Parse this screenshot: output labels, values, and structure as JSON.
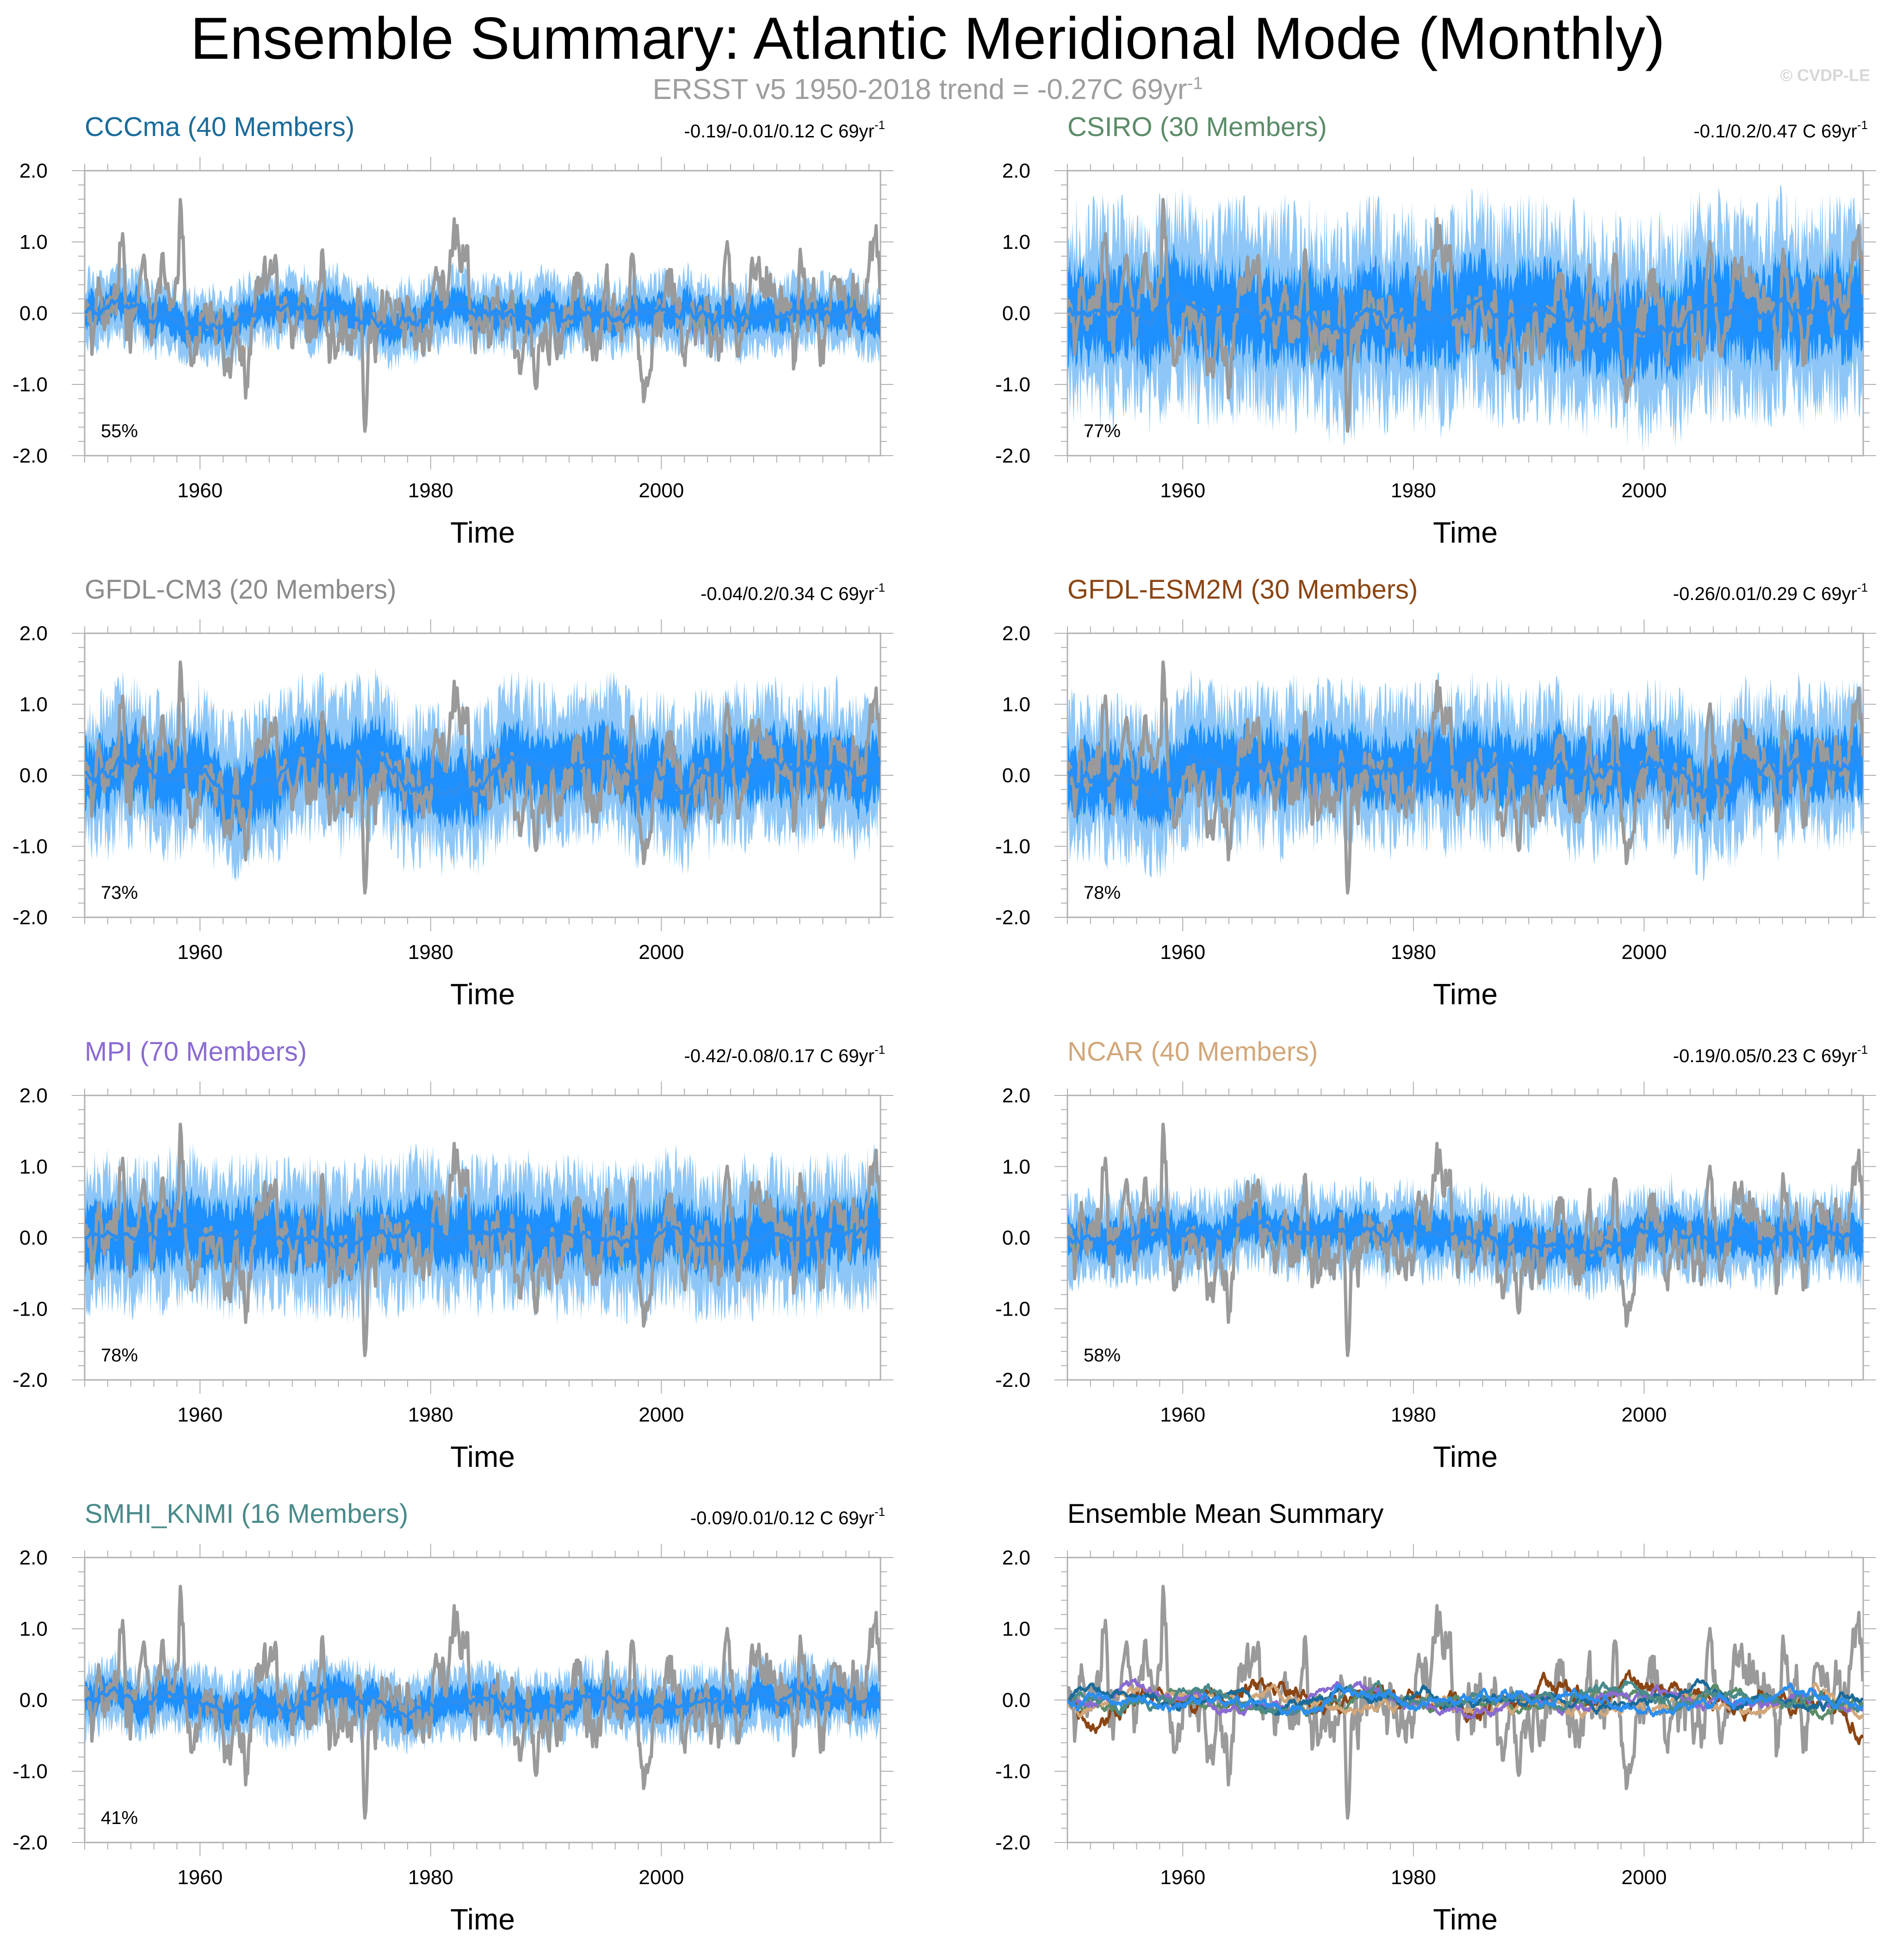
{
  "title": "Ensemble Summary: Atlantic Meridional Mode (Monthly)",
  "subtitle": {
    "text": "ERSST v5 1950-2018 trend = -0.27C 69yr",
    "superscript": "-1"
  },
  "copyright": "© CVDP-LE",
  "colors": {
    "observed": "#9a9a9a",
    "ensemble_mean": "#2b8ef0",
    "band_inner": "#1e90ff",
    "band_outer": "#8ec7f7",
    "axis": "#b0b0b0"
  },
  "chart_data": [
    {
      "type": "line",
      "id": "cccma",
      "title": "CCCma (40 Members)",
      "title_color": "#1a6b9a",
      "trend_text": "-0.19/-0.01/0.12 C 69yr",
      "trend_superscript": "-1",
      "pct_label": "55%",
      "amplitude": 0.17,
      "spread": 0.42,
      "seed": 11,
      "xlabel": "Time",
      "x_ticks": [
        "1960",
        "1980",
        "2000"
      ],
      "y_ticks": [
        "2.0",
        "1.0",
        "0.0",
        "-1.0",
        "-2.0"
      ],
      "xlim": [
        1950,
        2019
      ],
      "ylim": [
        -2.0,
        2.0
      ]
    },
    {
      "type": "line",
      "id": "csiro",
      "title": "CSIRO (30 Members)",
      "title_color": "#5b8c68",
      "trend_text": "-0.1/0.2/0.47 C 69yr",
      "trend_superscript": "-1",
      "pct_label": "77%",
      "amplitude": 0.18,
      "spread": 1.15,
      "seed": 23,
      "xlabel": "Time",
      "x_ticks": [
        "1960",
        "1980",
        "2000"
      ],
      "y_ticks": [
        "2.0",
        "1.0",
        "0.0",
        "-1.0",
        "-2.0"
      ],
      "xlim": [
        1950,
        2019
      ],
      "ylim": [
        -2.0,
        2.0
      ]
    },
    {
      "type": "line",
      "id": "gfdl-cm3",
      "title": "GFDL-CM3 (20 Members)",
      "title_color": "#8c8c8c",
      "trend_text": "-0.04/0.2/0.34 C 69yr",
      "trend_superscript": "-1",
      "pct_label": "73%",
      "amplitude": 0.2,
      "spread": 0.85,
      "seed": 37,
      "xlabel": "Time",
      "x_ticks": [
        "1960",
        "1980",
        "2000"
      ],
      "y_ticks": [
        "2.0",
        "1.0",
        "0.0",
        "-1.0",
        "-2.0"
      ],
      "xlim": [
        1950,
        2019
      ],
      "ylim": [
        -2.0,
        2.0
      ]
    },
    {
      "type": "line",
      "id": "gfdl-esm2m",
      "title": "GFDL-ESM2M (30 Members)",
      "title_color": "#8b4513",
      "trend_text": "-0.26/0.01/0.29 C 69yr",
      "trend_superscript": "-1",
      "pct_label": "78%",
      "amplitude": 0.22,
      "spread": 0.85,
      "seed": 53,
      "xlabel": "Time",
      "x_ticks": [
        "1960",
        "1980",
        "2000"
      ],
      "y_ticks": [
        "2.0",
        "1.0",
        "0.0",
        "-1.0",
        "-2.0"
      ],
      "xlim": [
        1950,
        2019
      ],
      "ylim": [
        -2.0,
        2.0
      ]
    },
    {
      "type": "line",
      "id": "mpi",
      "title": "MPI (70 Members)",
      "title_color": "#8a6bd1",
      "trend_text": "-0.42/-0.08/0.17 C 69yr",
      "trend_superscript": "-1",
      "pct_label": "78%",
      "amplitude": 0.13,
      "spread": 0.82,
      "seed": 71,
      "xlabel": "Time",
      "x_ticks": [
        "1960",
        "1980",
        "2000"
      ],
      "y_ticks": [
        "2.0",
        "1.0",
        "0.0",
        "-1.0",
        "-2.0"
      ],
      "xlim": [
        1950,
        2019
      ],
      "ylim": [
        -2.0,
        2.0
      ]
    },
    {
      "type": "line",
      "id": "ncar",
      "title": "NCAR (40 Members)",
      "title_color": "#d2a77a",
      "trend_text": "-0.19/0.05/0.23 C 69yr",
      "trend_superscript": "-1",
      "pct_label": "58%",
      "amplitude": 0.14,
      "spread": 0.5,
      "seed": 89,
      "xlabel": "Time",
      "x_ticks": [
        "1960",
        "1980",
        "2000"
      ],
      "y_ticks": [
        "2.0",
        "1.0",
        "0.0",
        "-1.0",
        "-2.0"
      ],
      "xlim": [
        1950,
        2019
      ],
      "ylim": [
        -2.0,
        2.0
      ]
    },
    {
      "type": "line",
      "id": "smhi-knmi",
      "title": "SMHI_KNMI (16 Members)",
      "title_color": "#4a8a8a",
      "trend_text": "-0.09/0.01/0.12 C 69yr",
      "trend_superscript": "-1",
      "pct_label": "41%",
      "amplitude": 0.13,
      "spread": 0.4,
      "seed": 97,
      "xlabel": "Time",
      "x_ticks": [
        "1960",
        "1980",
        "2000"
      ],
      "y_ticks": [
        "2.0",
        "1.0",
        "0.0",
        "-1.0",
        "-2.0"
      ],
      "xlim": [
        1950,
        2019
      ],
      "ylim": [
        -2.0,
        2.0
      ]
    },
    {
      "type": "line",
      "id": "ensemble-mean-summary",
      "title": "Ensemble Mean Summary",
      "title_color": "#000000",
      "trend_text": "",
      "trend_superscript": "",
      "pct_label": "",
      "summary": true,
      "summary_series_colors": [
        "#8b4513",
        "#5b8c68",
        "#d2a77a",
        "#8a6bd1",
        "#1a6b9a",
        "#4a8a8a",
        "#2b8ef0"
      ],
      "xlabel": "Time",
      "x_ticks": [
        "1960",
        "1980",
        "2000"
      ],
      "y_ticks": [
        "2.0",
        "1.0",
        "0.0",
        "-1.0",
        "-2.0"
      ],
      "xlim": [
        1950,
        2019
      ],
      "ylim": [
        -2.0,
        2.0
      ]
    }
  ]
}
